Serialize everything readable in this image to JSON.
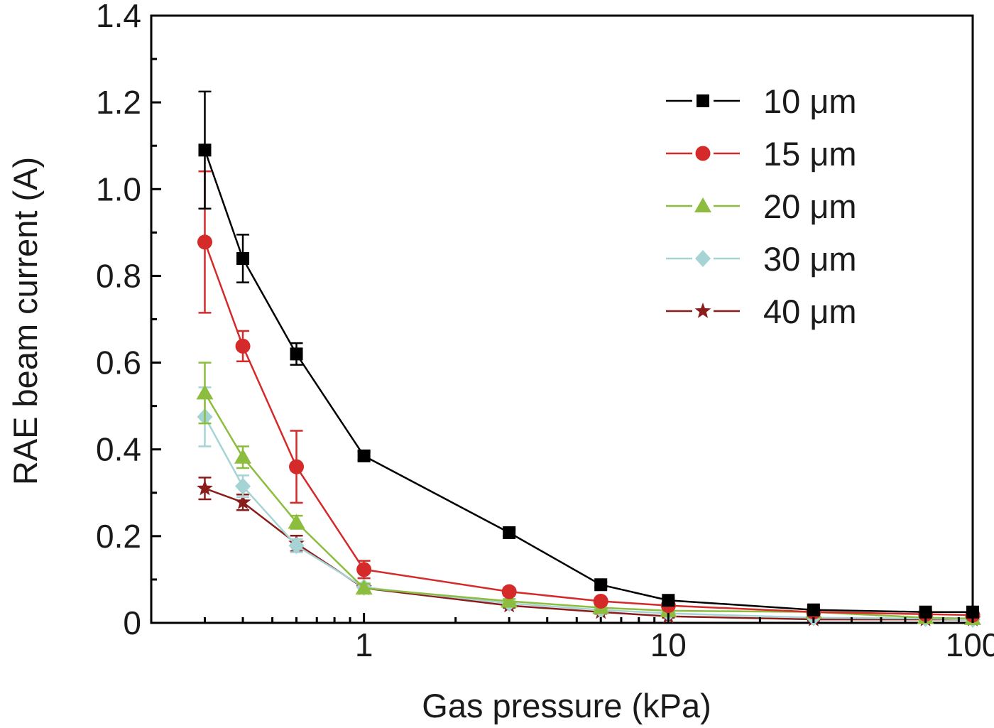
{
  "chart_data": {
    "type": "line",
    "xlabel": "Gas pressure (kPa)",
    "ylabel": "RAE beam current (A)",
    "xscale": "log",
    "xlim": [
      0.2,
      100
    ],
    "ylim": [
      0,
      1.4
    ],
    "xticks": [
      1,
      10,
      100
    ],
    "xtick_labels": [
      "1",
      "10",
      "100"
    ],
    "yticks": [
      0,
      0.2,
      0.4,
      0.6,
      0.8,
      1.0,
      1.2,
      1.4
    ],
    "ytick_labels": [
      "0",
      "0.2",
      "0.4",
      "0.6",
      "0.8",
      "1.0",
      "1.2",
      "1.4"
    ],
    "grid": false,
    "legend_position": "top-right",
    "series": [
      {
        "name": "10 μm",
        "color": "#000000",
        "marker": "square",
        "x": [
          0.3,
          0.4,
          0.6,
          1,
          3,
          6,
          10,
          30,
          70,
          100
        ],
        "y": [
          1.09,
          0.84,
          0.62,
          0.385,
          0.208,
          0.088,
          0.052,
          0.03,
          0.025,
          0.025
        ],
        "err": [
          0.135,
          0.055,
          0.025,
          0.01,
          0.008,
          0.006,
          0.005,
          0.004,
          0.004,
          0.004
        ]
      },
      {
        "name": "15 μm",
        "color": "#d42a2a",
        "marker": "circle",
        "x": [
          0.3,
          0.4,
          0.6,
          1,
          3,
          6,
          10,
          30,
          70,
          100
        ],
        "y": [
          0.878,
          0.638,
          0.36,
          0.123,
          0.072,
          0.05,
          0.04,
          0.025,
          0.02,
          0.018
        ],
        "err": [
          0.163,
          0.035,
          0.083,
          0.02,
          0.008,
          0.006,
          0.005,
          0.004,
          0.004,
          0.004
        ]
      },
      {
        "name": "20 μm",
        "color": "#8cbd3f",
        "marker": "triangle",
        "x": [
          0.3,
          0.4,
          0.6,
          1,
          3,
          6,
          10,
          30,
          70,
          100
        ],
        "y": [
          0.53,
          0.382,
          0.232,
          0.08,
          0.05,
          0.035,
          0.028,
          0.025,
          0.012,
          0.01
        ],
        "err": [
          0.07,
          0.025,
          0.015,
          0.01,
          0.005,
          0.005,
          0.004,
          0.004,
          0.003,
          0.003
        ]
      },
      {
        "name": "30 μm",
        "color": "#a6d4d4",
        "marker": "diamond",
        "x": [
          0.3,
          0.4,
          0.6,
          1,
          3,
          6,
          10,
          30,
          70,
          100
        ],
        "y": [
          0.475,
          0.315,
          0.178,
          0.082,
          0.045,
          0.03,
          0.022,
          0.012,
          0.01,
          0.008
        ],
        "err": [
          0.068,
          0.025,
          0.015,
          0.01,
          0.005,
          0.005,
          0.004,
          0.003,
          0.003,
          0.003
        ]
      },
      {
        "name": "40 μm",
        "color": "#8b1c1c",
        "marker": "star",
        "x": [
          0.3,
          0.4,
          0.6,
          1,
          3,
          6,
          10,
          30,
          70,
          100
        ],
        "y": [
          0.31,
          0.278,
          0.183,
          0.08,
          0.04,
          0.025,
          0.015,
          0.008,
          0.008,
          0.008
        ],
        "err": [
          0.025,
          0.018,
          0.018,
          0.008,
          0.005,
          0.004,
          0.003,
          0.003,
          0.003,
          0.003
        ]
      }
    ]
  }
}
